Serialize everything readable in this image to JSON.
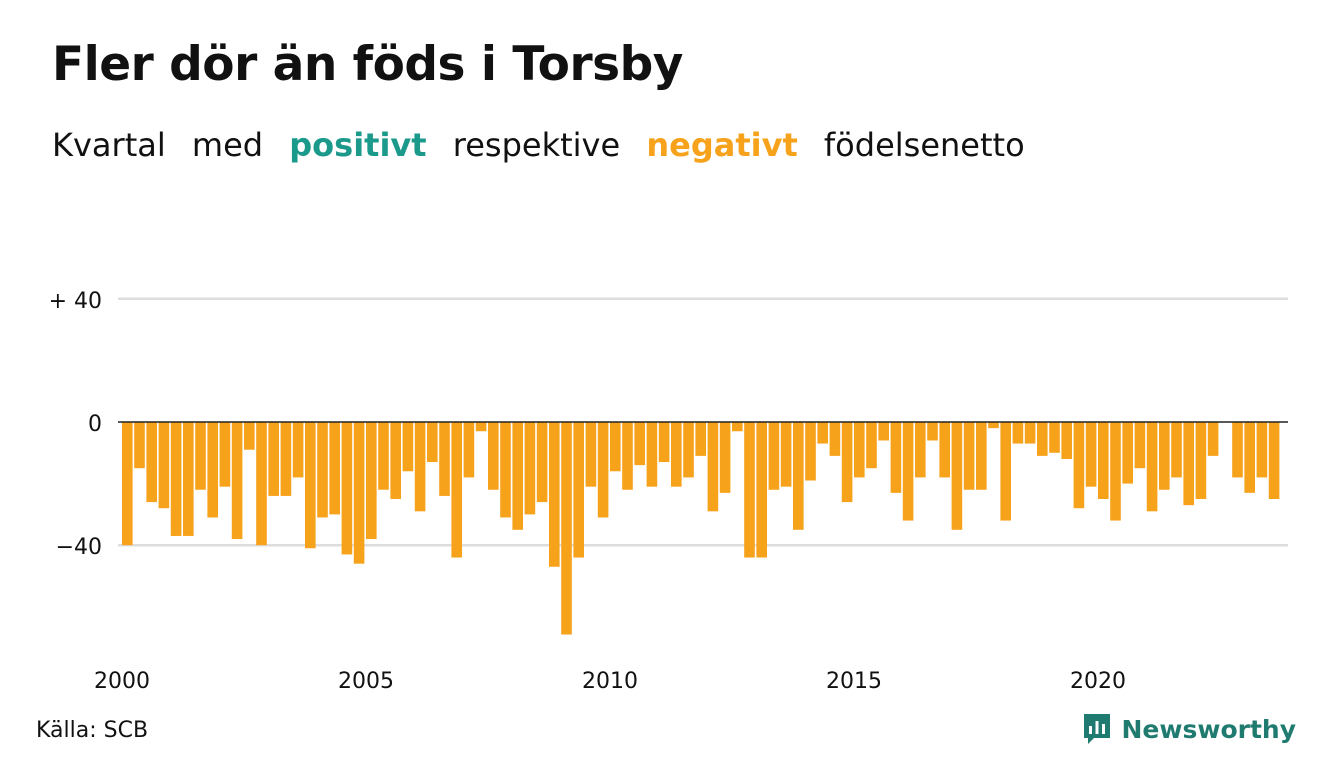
{
  "title": "Fler dör än föds i Torsby",
  "subtitle": {
    "w1": "Kvartal",
    "w2": "med",
    "positive": "positivt",
    "w3": "respektive",
    "negative": "negativt",
    "w4": "födelsenetto"
  },
  "colors": {
    "positive": "#1b998b",
    "negative": "#f7a21b",
    "grid": "#dddddd",
    "zero_line": "#222222"
  },
  "chart_data": {
    "type": "bar",
    "ylim": [
      -70,
      45
    ],
    "yticks": [
      {
        "value": 40,
        "label": "+ 40"
      },
      {
        "value": 0,
        "label": "0"
      },
      {
        "value": -40,
        "label": "−40"
      }
    ],
    "xticks": [
      {
        "value": 2000,
        "label": "2000"
      },
      {
        "value": 2005,
        "label": "2005"
      },
      {
        "value": 2010,
        "label": "2010"
      },
      {
        "value": 2015,
        "label": "2015"
      },
      {
        "value": 2020,
        "label": "2020"
      }
    ],
    "x_start": 2000,
    "periods_per_year": 4,
    "values": [
      -40,
      -15,
      -26,
      -28,
      -37,
      -37,
      -22,
      -31,
      -21,
      -38,
      -9,
      -40,
      -24,
      -24,
      -18,
      -41,
      -31,
      -30,
      -43,
      -46,
      -38,
      -22,
      -25,
      -16,
      -29,
      -13,
      -24,
      -44,
      -18,
      -3,
      -22,
      -31,
      -35,
      -30,
      -26,
      -47,
      -69,
      -44,
      -21,
      -31,
      -16,
      -22,
      -14,
      -21,
      -13,
      -21,
      -18,
      -11,
      -29,
      -23,
      -3,
      -44,
      -44,
      -22,
      -21,
      -35,
      -19,
      -7,
      -11,
      -26,
      -18,
      -15,
      -6,
      -23,
      -32,
      -18,
      -6,
      -18,
      -35,
      -22,
      -22,
      -2,
      -32,
      -7,
      -7,
      -11,
      -10,
      -12,
      -28,
      -21,
      -25,
      -32,
      -20,
      -15,
      -29,
      -22,
      -18,
      -27,
      -25,
      -11,
      0,
      -18,
      -23,
      -18,
      -25
    ]
  },
  "source": "Källa: SCB",
  "brand": {
    "name": "Newsworthy",
    "icon": "newsworthy-logo-icon"
  }
}
